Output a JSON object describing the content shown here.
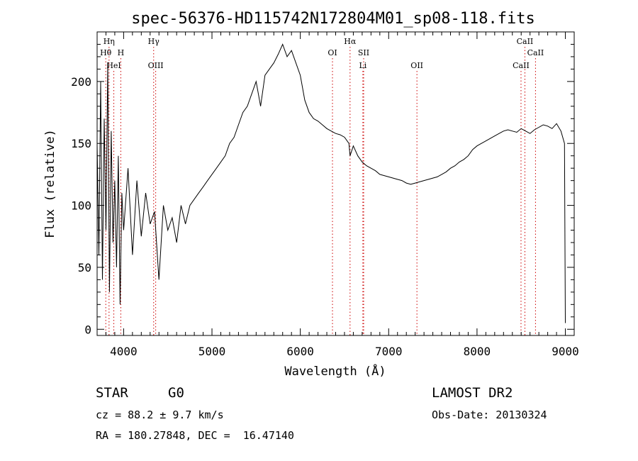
{
  "chart_data": {
    "type": "line",
    "title": "spec-56376-HD115742N172804M01_sp08-118.fits",
    "xlabel": "Wavelength (Å)",
    "ylabel": "Flux (relative)",
    "xlim": [
      3700,
      9100
    ],
    "ylim": [
      -5,
      240
    ],
    "x_ticks": [
      4000,
      5000,
      6000,
      7000,
      8000,
      9000
    ],
    "y_ticks": [
      0,
      50,
      100,
      150,
      200
    ],
    "grid": false,
    "line_color": "#000000",
    "marker_color": "#cc0000",
    "series": [
      {
        "x": [
          3700,
          3720,
          3740,
          3760,
          3780,
          3800,
          3820,
          3840,
          3860,
          3880,
          3900,
          3920,
          3940,
          3960,
          3980,
          4000,
          4050,
          4100,
          4150,
          4200,
          4250,
          4300,
          4350,
          4400,
          4450,
          4500,
          4550,
          4600,
          4650,
          4700,
          4750,
          4800,
          4850,
          4900,
          4950,
          5000,
          5050,
          5100,
          5150,
          5200,
          5250,
          5300,
          5350,
          5400,
          5450,
          5500,
          5550,
          5600,
          5650,
          5700,
          5750,
          5800,
          5850,
          5900,
          5950,
          6000,
          6050,
          6100,
          6150,
          6200,
          6250,
          6300,
          6350,
          6400,
          6450,
          6500,
          6550,
          6563,
          6600,
          6650,
          6700,
          6750,
          6800,
          6850,
          6900,
          6950,
          7000,
          7050,
          7100,
          7150,
          7200,
          7250,
          7300,
          7350,
          7400,
          7450,
          7500,
          7550,
          7600,
          7650,
          7700,
          7750,
          7800,
          7850,
          7900,
          7950,
          8000,
          8050,
          8100,
          8150,
          8200,
          8250,
          8300,
          8350,
          8400,
          8450,
          8500,
          8550,
          8600,
          8650,
          8700,
          8750,
          8800,
          8850,
          8900,
          8950,
          8990,
          9000
        ],
        "y": [
          150,
          60,
          200,
          40,
          170,
          80,
          215,
          30,
          160,
          70,
          120,
          50,
          140,
          20,
          110,
          80,
          130,
          60,
          120,
          75,
          110,
          85,
          95,
          40,
          100,
          80,
          90,
          70,
          100,
          85,
          100,
          105,
          110,
          115,
          120,
          125,
          130,
          135,
          140,
          150,
          155,
          165,
          175,
          180,
          190,
          200,
          180,
          205,
          210,
          215,
          222,
          230,
          220,
          225,
          215,
          205,
          185,
          175,
          170,
          168,
          165,
          162,
          160,
          158,
          157,
          155,
          150,
          140,
          148,
          140,
          135,
          132,
          130,
          128,
          125,
          124,
          123,
          122,
          121,
          120,
          118,
          117,
          118,
          119,
          120,
          121,
          122,
          123,
          125,
          127,
          130,
          132,
          135,
          137,
          140,
          145,
          148,
          150,
          152,
          154,
          156,
          158,
          160,
          161,
          160,
          159,
          162,
          160,
          158,
          161,
          163,
          165,
          164,
          162,
          166,
          160,
          150,
          5
        ]
      }
    ],
    "line_markers": [
      {
        "label": "Hη",
        "x": 3835,
        "row": 1
      },
      {
        "label": "Hθ",
        "x": 3798,
        "row": 2
      },
      {
        "label": "H",
        "x": 3968,
        "row": 2
      },
      {
        "label": "HeI",
        "x": 3889,
        "row": 3
      },
      {
        "label": "Hγ",
        "x": 4340,
        "row": 1
      },
      {
        "label": "OIII",
        "x": 4363,
        "row": 3
      },
      {
        "label": "OI",
        "x": 6364,
        "row": 2
      },
      {
        "label": "Hα",
        "x": 6563,
        "row": 1
      },
      {
        "label": "SII",
        "x": 6717,
        "row": 2
      },
      {
        "label": "Li",
        "x": 6708,
        "row": 3
      },
      {
        "label": "OII",
        "x": 7320,
        "row": 3
      },
      {
        "label": "CaII",
        "x": 8542,
        "row": 1
      },
      {
        "label": "CaII",
        "x": 8662,
        "row": 2
      },
      {
        "label": "CaII",
        "x": 8498,
        "row": 3
      }
    ]
  },
  "info": {
    "object_class": "STAR",
    "subclass": "G0",
    "survey": "LAMOST DR2",
    "cz": "cz = 88.2 ± 9.7 km/s",
    "obs_date": "Obs-Date: 20130324",
    "coords": "RA = 180.27848, DEC =  16.47140"
  }
}
